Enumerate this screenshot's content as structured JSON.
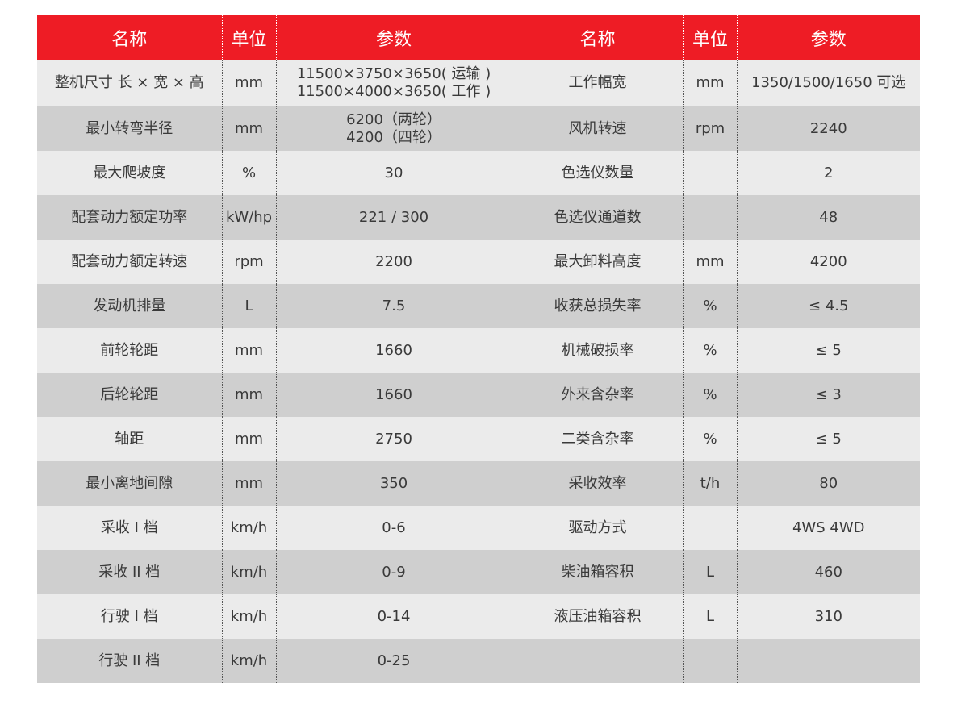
{
  "header": [
    "名称",
    "单位",
    "参数",
    "名称",
    "单位",
    "参数"
  ],
  "rows": [
    [
      "整机尺寸 长 × 宽 × 高",
      "mm",
      "11500×3750×3650( 运输 )\n11500×4000×3650( 工作 )",
      "工作幅宽",
      "mm",
      "1350/1500/1650 可选"
    ],
    [
      "最小转弯半径",
      "mm",
      "6200（两轮）\n4200（四轮）",
      "风机转速",
      "rpm",
      "2240"
    ],
    [
      "最大爬坡度",
      "%",
      "30",
      "色选仪数量",
      "",
      "2"
    ],
    [
      "配套动力额定功率",
      "kW/hp",
      "221 / 300",
      "色选仪通道数",
      "",
      "48"
    ],
    [
      "配套动力额定转速",
      "rpm",
      "2200",
      "最大卸料高度",
      "mm",
      "4200"
    ],
    [
      "发动机排量",
      "L",
      "7.5",
      "收获总损失率",
      "%",
      "≤ 4.5"
    ],
    [
      "前轮轮距",
      "mm",
      "1660",
      "机械破损率",
      "%",
      "≤ 5"
    ],
    [
      "后轮轮距",
      "mm",
      "1660",
      "外来含杂率",
      "%",
      "≤ 3"
    ],
    [
      "轴距",
      "mm",
      "2750",
      "二类含杂率",
      "%",
      "≤ 5"
    ],
    [
      "最小离地间隙",
      "mm",
      "350",
      "采收效率",
      "t/h",
      "80"
    ],
    [
      "采收 I 档",
      "km/h",
      "0-6",
      "驱动方式",
      "",
      "4WS 4WD"
    ],
    [
      "采收 II 档",
      "km/h",
      "0-9",
      "柴油箱容积",
      "L",
      "460"
    ],
    [
      "行驶 I 档",
      "km/h",
      "0-14",
      "液压油箱容积",
      "L",
      "310"
    ],
    [
      "行驶 II 档",
      "km/h",
      "0-25",
      "",
      "",
      ""
    ]
  ]
}
